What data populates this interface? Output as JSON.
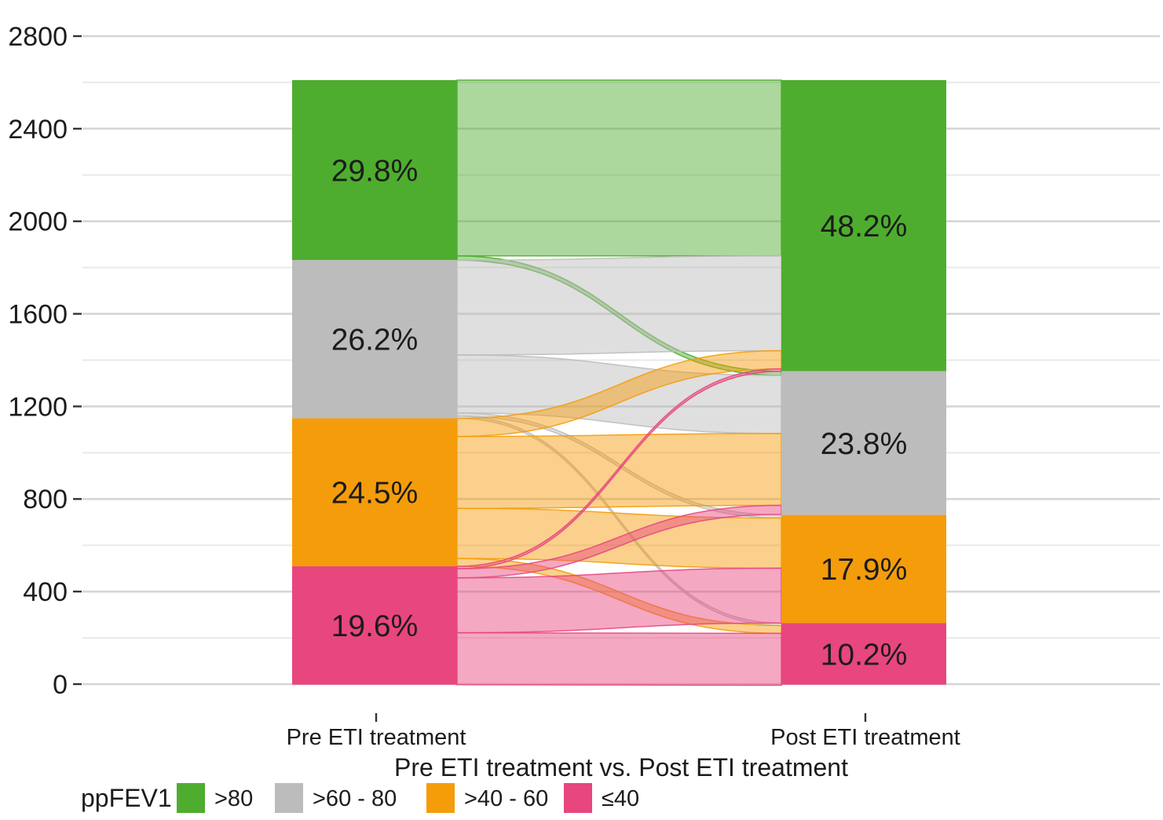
{
  "figure": {
    "x_tick_labels": {
      "pre": "Pre ETI treatment",
      "post": "Post ETI treatment"
    },
    "axis_title": "Pre ETI treatment vs. Post ETI treatment",
    "legend": {
      "title": "ppFEV1",
      "items": [
        {
          "label": ">80",
          "color": "#4ead2e"
        },
        {
          "label": ">60 - 80",
          "color": "#bcbcbc"
        },
        {
          "label": ">40 - 60",
          "color": "#f59c0b"
        },
        {
          "label": "≤40",
          "color": "#e8467e"
        }
      ]
    }
  },
  "chart_data": {
    "type": "alluvial",
    "stages": [
      "Pre ETI treatment",
      "Post ETI treatment"
    ],
    "categories": [
      ">80",
      ">60 - 80",
      ">40 - 60",
      "≤40"
    ],
    "category_colors": {
      ">80": "#4ead2e",
      ">60 - 80": "#bcbcbc",
      ">40 - 60": "#f59c0b",
      "≤40": "#e8467e"
    },
    "pre_pct": [
      29.8,
      26.2,
      24.5,
      19.6
    ],
    "post_pct": [
      48.2,
      23.8,
      17.9,
      10.2
    ],
    "pre_labels": [
      "29.8%",
      "26.2%",
      "24.5%",
      "19.6%"
    ],
    "post_labels": [
      "48.2%",
      "23.8%",
      "17.9%",
      "10.2%"
    ],
    "y_axis": {
      "min": 0,
      "max": 2800,
      "major_ticks": [
        0,
        400,
        800,
        1200,
        1600,
        2000,
        2400,
        2800
      ],
      "minor_ticks": [
        200,
        600,
        1000,
        1400,
        1800,
        2200,
        2600
      ],
      "grid": true
    },
    "xlabel": "Pre ETI treatment vs. Post ETI treatment",
    "legend_title": "ppFEV1",
    "flows_pct": [
      {
        "from": ">80",
        "to": ">80",
        "pct": 29.1
      },
      {
        "from": ">80",
        "to": ">60 - 80",
        "pct": 0.7
      },
      {
        "from": ">60 - 80",
        "to": ">80",
        "pct": 15.7
      },
      {
        "from": ">60 - 80",
        "to": ">60 - 80",
        "pct": 9.6
      },
      {
        "from": ">60 - 80",
        "to": ">40 - 60",
        "pct": 0.5
      },
      {
        "from": ">60 - 80",
        "to": "≤40",
        "pct": 0.4
      },
      {
        "from": ">40 - 60",
        "to": ">80",
        "pct": 3.0
      },
      {
        "from": ">40 - 60",
        "to": ">60 - 80",
        "pct": 11.9
      },
      {
        "from": ">40 - 60",
        "to": ">40 - 60",
        "pct": 8.3
      },
      {
        "from": ">40 - 60",
        "to": "≤40",
        "pct": 1.3
      },
      {
        "from": "≤40",
        "to": ">80",
        "pct": 0.4
      },
      {
        "from": "≤40",
        "to": ">60 - 80",
        "pct": 1.5
      },
      {
        "from": "≤40",
        "to": ">40 - 60",
        "pct": 9.1
      },
      {
        "from": "≤40",
        "to": "≤40",
        "pct": 8.6
      }
    ]
  }
}
